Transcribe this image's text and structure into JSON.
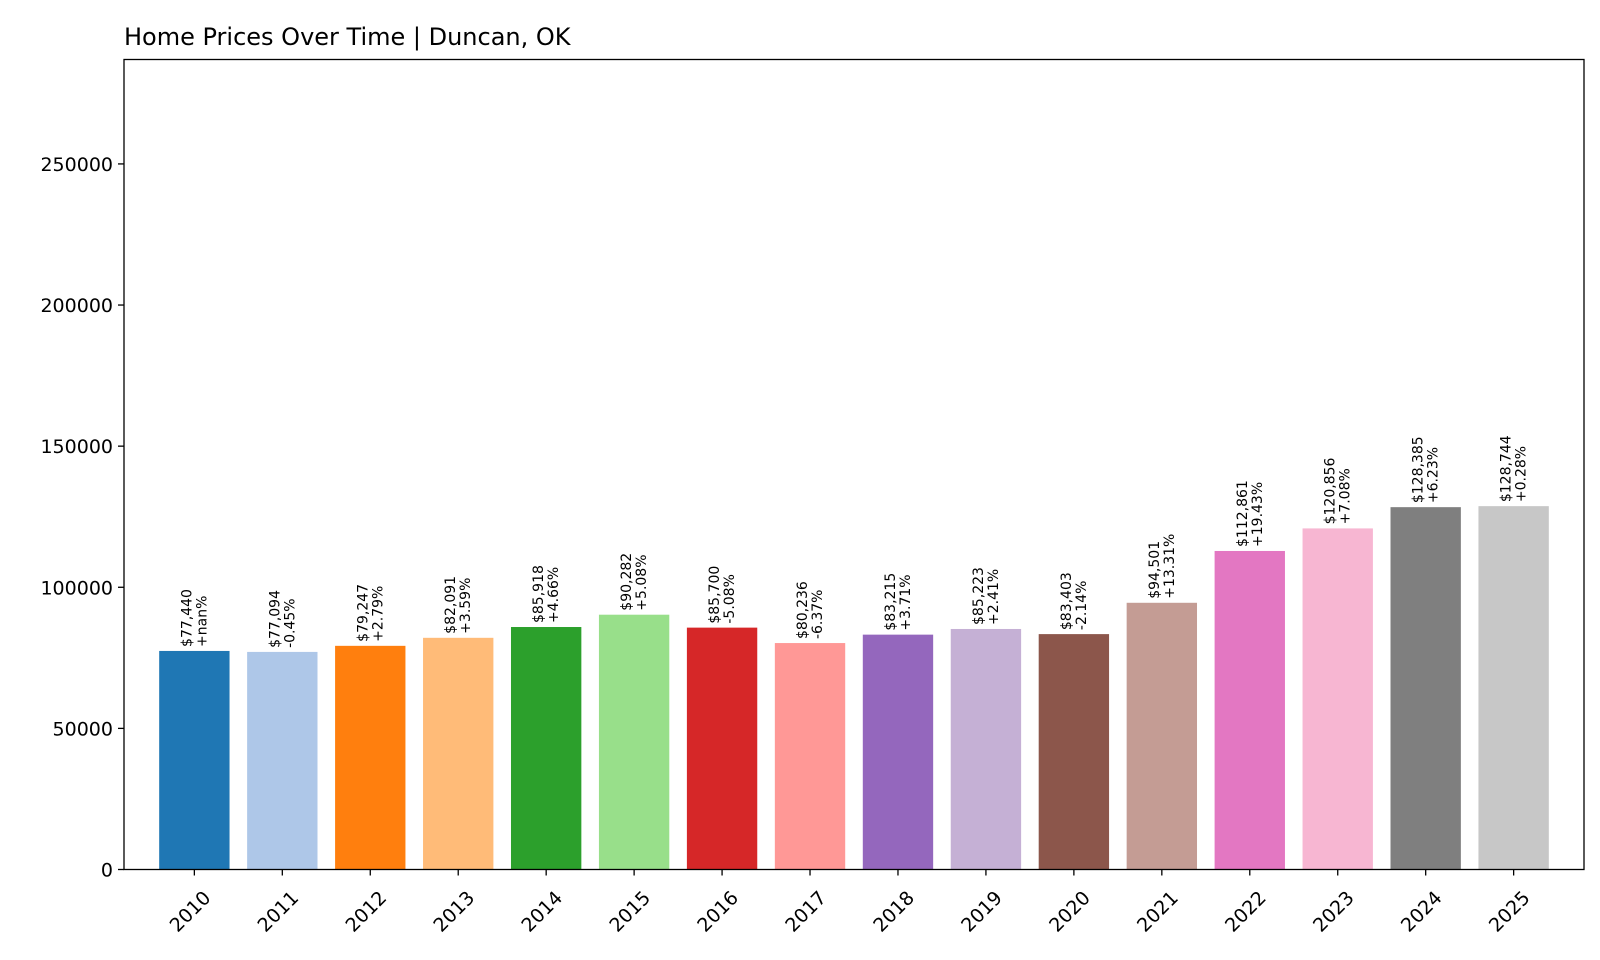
{
  "chart_data": {
    "type": "bar",
    "title": "Home Prices Over Time | Duncan, OK",
    "xlabel": "",
    "ylabel": "",
    "ylim": [
      0,
      287000
    ],
    "yticks": [
      0,
      50000,
      100000,
      150000,
      200000,
      250000
    ],
    "grid": false,
    "categories": [
      "2010",
      "2011",
      "2012",
      "2013",
      "2014",
      "2015",
      "2016",
      "2017",
      "2018",
      "2019",
      "2020",
      "2021",
      "2022",
      "2023",
      "2024",
      "2025"
    ],
    "values": [
      77440,
      77094,
      79247,
      82091,
      85918,
      90282,
      85700,
      80236,
      83215,
      85223,
      83403,
      94501,
      112861,
      120856,
      128385,
      128744
    ],
    "value_labels": [
      "$77,440",
      "$77,094",
      "$79,247",
      "$82,091",
      "$85,918",
      "$90,282",
      "$85,700",
      "$80,236",
      "$83,215",
      "$85,223",
      "$83,403",
      "$94,501",
      "$112,861",
      "$120,856",
      "$128,385",
      "$128,744"
    ],
    "change_labels": [
      "+nan%",
      "-0.45%",
      "+2.79%",
      "+3.59%",
      "+4.66%",
      "+5.08%",
      "-5.08%",
      "-6.37%",
      "+3.71%",
      "+2.41%",
      "-2.14%",
      "+13.31%",
      "+19.43%",
      "+7.08%",
      "+6.23%",
      "+0.28%"
    ],
    "colors": [
      "#1f77b4",
      "#aec7e8",
      "#ff7f0e",
      "#ffbb78",
      "#2ca02c",
      "#98df8a",
      "#d62728",
      "#ff9896",
      "#9467bd",
      "#c5b0d5",
      "#8c564b",
      "#c49c94",
      "#e377c2",
      "#f7b6d2",
      "#7f7f7f",
      "#c7c7c7"
    ]
  }
}
